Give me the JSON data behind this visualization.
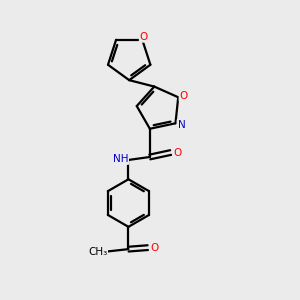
{
  "background_color": "#ebebeb",
  "bond_color": "#000000",
  "atom_colors": {
    "O": "#ff0000",
    "N": "#0000cc",
    "C": "#000000",
    "H": "#555555"
  },
  "figsize": [
    3.0,
    3.0
  ],
  "dpi": 100
}
